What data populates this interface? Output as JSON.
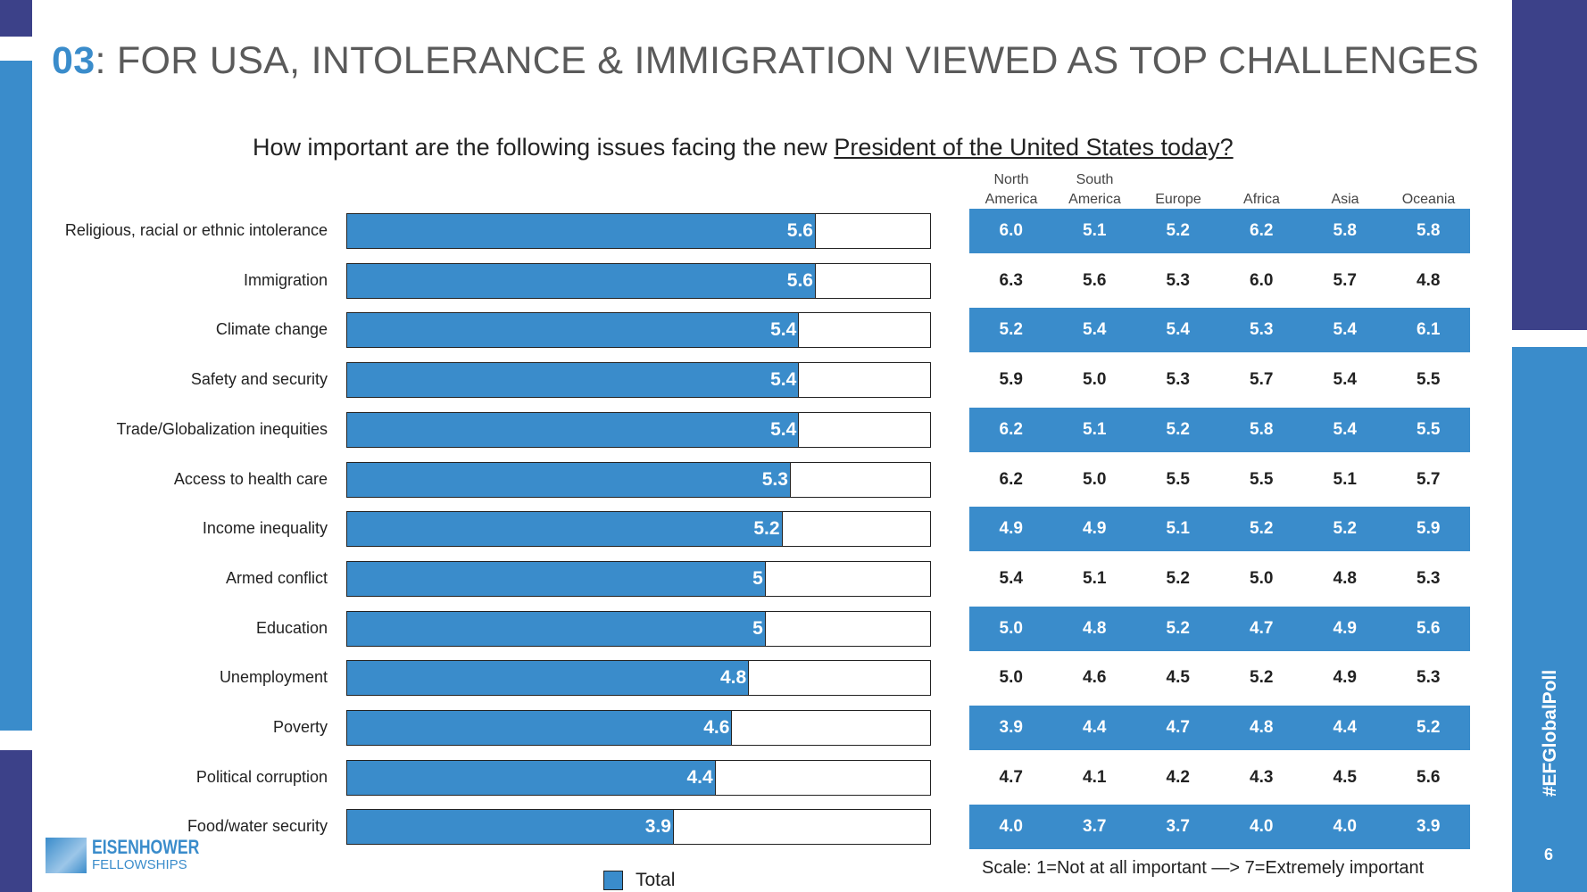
{
  "title": {
    "number": "03",
    "text": ": FOR USA, INTOLERANCE & IMMIGRATION VIEWED AS TOP CHALLENGES"
  },
  "subtitle": {
    "prefix": "How important are the following issues facing the new ",
    "underlined": "President of the United States today?"
  },
  "colors": {
    "accent": "#3a8ccb",
    "dark": "#3c4189"
  },
  "chart_data": {
    "type": "bar",
    "orientation": "horizontal",
    "xlim": [
      0,
      7
    ],
    "categories": [
      "Religious, racial or ethnic intolerance",
      "Immigration",
      "Climate change",
      "Safety and security",
      "Trade/Globalization inequities",
      "Access to health care",
      "Income inequality",
      "Armed conflict",
      "Education",
      "Unemployment",
      "Poverty",
      "Political corruption",
      "Food/water security"
    ],
    "series": [
      {
        "name": "Total",
        "values": [
          5.6,
          5.6,
          5.4,
          5.4,
          5.4,
          5.3,
          5.2,
          5,
          5,
          4.8,
          4.6,
          4.4,
          3.9
        ]
      }
    ],
    "value_labels": [
      "5.6",
      "5.6",
      "5.4",
      "5.4",
      "5.4",
      "5.3",
      "5.2",
      "5",
      "5",
      "4.8",
      "4.6",
      "4.4",
      "3.9"
    ],
    "legend": "bottom"
  },
  "table": {
    "headers": [
      [
        "North",
        "America"
      ],
      [
        "South",
        "America"
      ],
      [
        "",
        "Europe"
      ],
      [
        "",
        "Africa"
      ],
      [
        "",
        "Asia"
      ],
      [
        "",
        "Oceania"
      ]
    ],
    "rows": [
      [
        "6.0",
        "5.1",
        "5.2",
        "6.2",
        "5.8",
        "5.8"
      ],
      [
        "6.3",
        "5.6",
        "5.3",
        "6.0",
        "5.7",
        "4.8"
      ],
      [
        "5.2",
        "5.4",
        "5.4",
        "5.3",
        "5.4",
        "6.1"
      ],
      [
        "5.9",
        "5.0",
        "5.3",
        "5.7",
        "5.4",
        "5.5"
      ],
      [
        "6.2",
        "5.1",
        "5.2",
        "5.8",
        "5.4",
        "5.5"
      ],
      [
        "6.2",
        "5.0",
        "5.5",
        "5.5",
        "5.1",
        "5.7"
      ],
      [
        "4.9",
        "4.9",
        "5.1",
        "5.2",
        "5.2",
        "5.9"
      ],
      [
        "5.4",
        "5.1",
        "5.2",
        "5.0",
        "4.8",
        "5.3"
      ],
      [
        "5.0",
        "4.8",
        "5.2",
        "4.7",
        "4.9",
        "5.6"
      ],
      [
        "5.0",
        "4.6",
        "4.5",
        "5.2",
        "4.9",
        "5.3"
      ],
      [
        "3.9",
        "4.4",
        "4.7",
        "4.8",
        "4.4",
        "5.2"
      ],
      [
        "4.7",
        "4.1",
        "4.2",
        "4.3",
        "4.5",
        "5.6"
      ],
      [
        "4.0",
        "3.7",
        "3.7",
        "4.0",
        "4.0",
        "3.9"
      ]
    ]
  },
  "scale_note": "Scale: 1=Not at all important —> 7=Extremely important",
  "logo": {
    "line1": "EISENHOWER",
    "line2": "FELLOWSHIPS"
  },
  "hashtag": "#EFGlobalPoll",
  "page_number": "6"
}
